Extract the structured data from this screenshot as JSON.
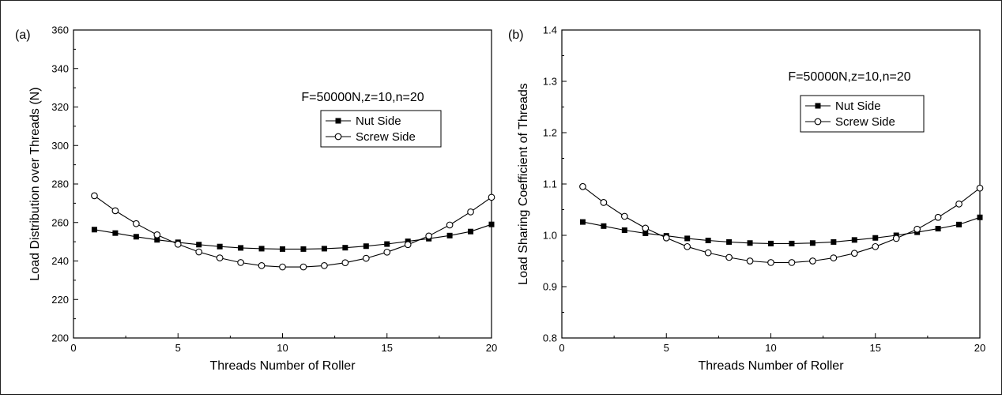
{
  "chart_data": [
    {
      "type": "line",
      "panel_label": "(a)",
      "title": "",
      "annotation": "F=50000N,z=10,n=20",
      "xlabel": "Threads Number of Roller",
      "ylabel": "Load Distribution over Threads (N)",
      "xlim": [
        0,
        20
      ],
      "ylim": [
        200,
        360
      ],
      "xticks": [
        0,
        5,
        10,
        15,
        20
      ],
      "yticks": [
        200,
        220,
        240,
        260,
        280,
        300,
        320,
        340,
        360
      ],
      "grid": false,
      "legend_position": "top-center",
      "x": [
        1,
        2,
        3,
        4,
        5,
        6,
        7,
        8,
        9,
        10,
        11,
        12,
        13,
        14,
        15,
        16,
        17,
        18,
        19,
        20
      ],
      "series": [
        {
          "name": "Nut Side",
          "marker": "filled-square",
          "color": "#000000",
          "values": [
            256.3,
            254.5,
            252.6,
            251.0,
            249.7,
            248.5,
            247.5,
            246.8,
            246.4,
            246.2,
            246.2,
            246.4,
            246.9,
            247.7,
            248.8,
            250.2,
            251.6,
            253.2,
            255.3,
            259.0
          ]
        },
        {
          "name": "Screw Side",
          "marker": "open-circle",
          "color": "#000000",
          "values": [
            273.9,
            266.1,
            259.4,
            253.6,
            248.7,
            244.7,
            241.6,
            239.2,
            237.6,
            236.9,
            236.9,
            237.6,
            239.1,
            241.4,
            244.6,
            248.5,
            253.0,
            258.7,
            265.5,
            273.1
          ]
        }
      ]
    },
    {
      "type": "line",
      "panel_label": "(b)",
      "title": "",
      "annotation": "F=50000N,z=10,n=20",
      "xlabel": "Threads Number of Roller",
      "ylabel": "Load Sharing Coefficient of Threads",
      "xlim": [
        0,
        20
      ],
      "ylim": [
        0.8,
        1.4
      ],
      "xticks": [
        0,
        5,
        10,
        15,
        20
      ],
      "yticks": [
        0.8,
        0.9,
        1.0,
        1.1,
        1.2,
        1.3,
        1.4
      ],
      "ytick_labels": [
        "0.8",
        "0.9",
        "1.0",
        "1.1",
        "1.2",
        "1.3",
        "1.4"
      ],
      "grid": false,
      "legend_position": "top-right",
      "x": [
        1,
        2,
        3,
        4,
        5,
        6,
        7,
        8,
        9,
        10,
        11,
        12,
        13,
        14,
        15,
        16,
        17,
        18,
        19,
        20
      ],
      "series": [
        {
          "name": "Nut Side",
          "marker": "filled-square",
          "color": "#000000",
          "values": [
            1.026,
            1.018,
            1.01,
            1.004,
            0.999,
            0.994,
            0.99,
            0.987,
            0.985,
            0.984,
            0.984,
            0.985,
            0.987,
            0.991,
            0.995,
            1.0,
            1.006,
            1.013,
            1.021,
            1.035
          ]
        },
        {
          "name": "Screw Side",
          "marker": "open-circle",
          "color": "#000000",
          "values": [
            1.095,
            1.064,
            1.037,
            1.014,
            0.995,
            0.978,
            0.966,
            0.957,
            0.95,
            0.947,
            0.947,
            0.95,
            0.956,
            0.965,
            0.978,
            0.994,
            1.012,
            1.035,
            1.061,
            1.092
          ]
        }
      ]
    }
  ]
}
